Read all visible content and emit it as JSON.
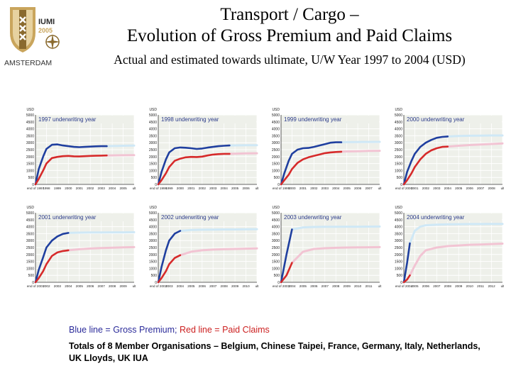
{
  "header": {
    "title_line1": "Transport / Cargo –",
    "title_line2": "Evolution of Gross Premium and Paid Claims",
    "subtitle": "Actual and estimated towards ultimate, U/W Year 1997 to 2004 (USD)"
  },
  "logo": {
    "text_iumi": "IUMI",
    "text_year": "2005",
    "text_city": "AMSTERDAM"
  },
  "legend": {
    "blue_text": "Blue line = Gross Premium;",
    "red_text": "Red line = Paid Claims"
  },
  "footnote": "Totals of 8 Member Organisations – Belgium, Chinese Taipei, France, Germany, Italy, Netherlands, UK Lloyds, UK IUA",
  "colors": {
    "premium": "#1f3f9f",
    "premium_est": "#cfe8f6",
    "claims": "#d62a2a",
    "claims_est": "#f2c4d3",
    "panel_bg": "#eef0ea",
    "grid": "#ffffff"
  },
  "chart_data": [
    {
      "type": "line",
      "title": "1997 underwriting year",
      "unit": "USD",
      "yticks": [
        0,
        500,
        1000,
        1500,
        2000,
        2500,
        3000,
        3500,
        4000,
        4500,
        5000
      ],
      "ylim": [
        0,
        5000
      ],
      "xticks": [
        "end of 1997",
        "1998",
        "1999",
        "2000",
        "2001",
        "2002",
        "2003",
        "2004",
        "2005",
        "ult"
      ],
      "series": [
        {
          "name": "Gross Premium",
          "x": [
            0,
            0.3,
            0.7,
            1,
            1.5,
            2,
            2.5,
            3,
            3.5,
            4,
            4.5,
            5,
            5.5,
            6,
            6.5
          ],
          "y": [
            0,
            1100,
            2000,
            2550,
            2850,
            2880,
            2800,
            2750,
            2700,
            2680,
            2700,
            2720,
            2740,
            2750,
            2750
          ]
        },
        {
          "name": "Gross Premium (estimated)",
          "x": [
            6.5,
            7,
            7.5,
            8,
            9
          ],
          "y": [
            2750,
            2760,
            2770,
            2780,
            2790
          ]
        },
        {
          "name": "Paid Claims",
          "x": [
            0,
            0.3,
            0.7,
            1,
            1.5,
            2,
            2.5,
            3,
            3.5,
            4,
            4.5,
            5,
            5.5,
            6,
            6.5
          ],
          "y": [
            0,
            400,
            1000,
            1500,
            1900,
            1980,
            2030,
            2050,
            2020,
            2010,
            2030,
            2050,
            2060,
            2070,
            2080
          ]
        },
        {
          "name": "Paid Claims (estimated)",
          "x": [
            6.5,
            7,
            7.5,
            8,
            9
          ],
          "y": [
            2080,
            2085,
            2090,
            2095,
            2100
          ]
        }
      ]
    },
    {
      "type": "line",
      "title": "1998 underwriting year",
      "unit": "USD",
      "yticks": [
        0,
        500,
        1000,
        1500,
        2000,
        2500,
        3000,
        3500,
        4000,
        4500,
        5000
      ],
      "ylim": [
        0,
        5000
      ],
      "xticks": [
        "end of 1998",
        "1999",
        "2000",
        "2001",
        "2002",
        "2003",
        "2004",
        "2005",
        "2006",
        "ult"
      ],
      "series": [
        {
          "name": "Gross Premium",
          "x": [
            0,
            0.3,
            0.7,
            1,
            1.5,
            2,
            2.5,
            3,
            3.5,
            4,
            4.5,
            5,
            5.5,
            6,
            6.5
          ],
          "y": [
            0,
            900,
            1800,
            2300,
            2600,
            2660,
            2640,
            2600,
            2550,
            2580,
            2650,
            2700,
            2750,
            2780,
            2800
          ]
        },
        {
          "name": "Gross Premium (estimated)",
          "x": [
            6.5,
            7,
            7.5,
            8,
            9
          ],
          "y": [
            2800,
            2805,
            2810,
            2815,
            2820
          ]
        },
        {
          "name": "Paid Claims",
          "x": [
            0,
            0.3,
            0.7,
            1,
            1.5,
            2,
            2.5,
            3,
            3.5,
            4,
            4.5,
            5,
            5.5,
            6,
            6.5
          ],
          "y": [
            0,
            300,
            800,
            1250,
            1700,
            1850,
            1950,
            1980,
            1970,
            2000,
            2080,
            2150,
            2180,
            2200,
            2200
          ]
        },
        {
          "name": "Paid Claims (estimated)",
          "x": [
            6.5,
            7,
            7.5,
            8,
            9
          ],
          "y": [
            2200,
            2210,
            2220,
            2230,
            2240
          ]
        }
      ]
    },
    {
      "type": "line",
      "title": "1999 underwriting year",
      "unit": "USD",
      "yticks": [
        0,
        500,
        1000,
        1500,
        2000,
        2500,
        3000,
        3500,
        4000,
        4500,
        5000
      ],
      "ylim": [
        0,
        5000
      ],
      "xticks": [
        "end of 1999",
        "2000",
        "2001",
        "2002",
        "2003",
        "2004",
        "2005",
        "2006",
        "2007",
        "ult"
      ],
      "series": [
        {
          "name": "Gross Premium",
          "x": [
            0,
            0.3,
            0.7,
            1,
            1.5,
            2,
            2.5,
            3,
            3.5,
            4,
            4.5,
            5,
            5.5
          ],
          "y": [
            0,
            800,
            1700,
            2200,
            2500,
            2600,
            2620,
            2700,
            2800,
            2900,
            3000,
            3030,
            3030
          ]
        },
        {
          "name": "Gross Premium (estimated)",
          "x": [
            5.5,
            6,
            7,
            8,
            9
          ],
          "y": [
            3030,
            3040,
            3050,
            3055,
            3060
          ]
        },
        {
          "name": "Paid Claims",
          "x": [
            0,
            0.3,
            0.7,
            1,
            1.5,
            2,
            2.5,
            3,
            3.5,
            4,
            4.5,
            5,
            5.5
          ],
          "y": [
            0,
            300,
            700,
            1100,
            1550,
            1800,
            1950,
            2050,
            2150,
            2250,
            2300,
            2330,
            2350
          ]
        },
        {
          "name": "Paid Claims (estimated)",
          "x": [
            5.5,
            6,
            7,
            8,
            9
          ],
          "y": [
            2350,
            2370,
            2390,
            2410,
            2420
          ]
        }
      ]
    },
    {
      "type": "line",
      "title": "2000 underwriting year",
      "unit": "USD",
      "yticks": [
        0,
        500,
        1000,
        1500,
        2000,
        2500,
        3000,
        3500,
        4000,
        4500,
        5000
      ],
      "ylim": [
        0,
        5000
      ],
      "xticks": [
        "end of 2000",
        "2001",
        "2002",
        "2003",
        "2004",
        "2005",
        "2006",
        "2007",
        "2008",
        "ult"
      ],
      "series": [
        {
          "name": "Gross Premium",
          "x": [
            0,
            0.3,
            0.7,
            1,
            1.5,
            2,
            2.5,
            3,
            3.5,
            4
          ],
          "y": [
            0,
            900,
            1700,
            2200,
            2700,
            3000,
            3200,
            3350,
            3420,
            3450
          ]
        },
        {
          "name": "Gross Premium (estimated)",
          "x": [
            4,
            5,
            6,
            7,
            8,
            9
          ],
          "y": [
            3450,
            3480,
            3500,
            3510,
            3520,
            3520
          ]
        },
        {
          "name": "Paid Claims",
          "x": [
            0,
            0.3,
            0.7,
            1,
            1.5,
            2,
            2.5,
            3,
            3.5,
            4
          ],
          "y": [
            0,
            300,
            800,
            1250,
            1800,
            2200,
            2450,
            2600,
            2700,
            2720
          ]
        },
        {
          "name": "Paid Claims (estimated)",
          "x": [
            4,
            5,
            6,
            7,
            8,
            9
          ],
          "y": [
            2720,
            2780,
            2830,
            2870,
            2910,
            2950
          ]
        }
      ]
    },
    {
      "type": "line",
      "title": "2001 underwriting year",
      "unit": "USD",
      "yticks": [
        0,
        500,
        1000,
        1500,
        2000,
        2500,
        3000,
        3500,
        4000,
        4500,
        5000
      ],
      "ylim": [
        0,
        5000
      ],
      "xticks": [
        "end of 2001",
        "2002",
        "2003",
        "2004",
        "2005",
        "2006",
        "2007",
        "2008",
        "2009",
        "ult"
      ],
      "series": [
        {
          "name": "Gross Premium",
          "x": [
            0,
            0.3,
            0.7,
            1,
            1.5,
            2,
            2.5,
            3
          ],
          "y": [
            0,
            900,
            1800,
            2500,
            3000,
            3300,
            3480,
            3550
          ]
        },
        {
          "name": "Gross Premium (estimated)",
          "x": [
            3,
            4,
            5,
            6,
            7,
            8,
            9
          ],
          "y": [
            3550,
            3570,
            3580,
            3580,
            3590,
            3590,
            3600
          ]
        },
        {
          "name": "Paid Claims",
          "x": [
            0,
            0.3,
            0.7,
            1,
            1.5,
            2,
            2.5,
            3
          ],
          "y": [
            0,
            300,
            800,
            1300,
            1900,
            2150,
            2250,
            2300
          ]
        },
        {
          "name": "Paid Claims (estimated)",
          "x": [
            3,
            4,
            5,
            6,
            7,
            8,
            9
          ],
          "y": [
            2300,
            2380,
            2430,
            2460,
            2490,
            2510,
            2530
          ]
        }
      ]
    },
    {
      "type": "line",
      "title": "2002 underwriting year",
      "unit": "USD",
      "yticks": [
        0,
        500,
        1000,
        1500,
        2000,
        2500,
        3000,
        3500,
        4000,
        4500,
        5000
      ],
      "ylim": [
        0,
        5000
      ],
      "xticks": [
        "end of 2002",
        "2003",
        "2004",
        "2005",
        "2006",
        "2007",
        "2008",
        "2009",
        "2010",
        "ult"
      ],
      "series": [
        {
          "name": "Gross Premium",
          "x": [
            0,
            0.3,
            0.7,
            1,
            1.5,
            2
          ],
          "y": [
            0,
            1100,
            2300,
            3000,
            3500,
            3700
          ]
        },
        {
          "name": "Gross Premium (estimated)",
          "x": [
            2,
            3,
            4,
            5,
            6,
            7,
            8,
            9
          ],
          "y": [
            3700,
            3760,
            3780,
            3790,
            3800,
            3800,
            3810,
            3820
          ]
        },
        {
          "name": "Paid Claims",
          "x": [
            0,
            0.3,
            0.7,
            1,
            1.5,
            2
          ],
          "y": [
            0,
            300,
            800,
            1300,
            1750,
            1950
          ]
        },
        {
          "name": "Paid Claims (estimated)",
          "x": [
            2,
            3,
            4,
            5,
            6,
            7,
            8,
            9
          ],
          "y": [
            1950,
            2200,
            2300,
            2350,
            2380,
            2400,
            2420,
            2440
          ]
        }
      ]
    },
    {
      "type": "line",
      "title": "2003 underwriting year",
      "unit": "USD",
      "yticks": [
        0,
        500,
        1000,
        1500,
        2000,
        2500,
        3000,
        3500,
        4000,
        4500,
        5000
      ],
      "ylim": [
        0,
        5000
      ],
      "xticks": [
        "end of 2003",
        "2004",
        "2005",
        "2006",
        "2007",
        "2008",
        "2009",
        "2010",
        "2011",
        "ult"
      ],
      "series": [
        {
          "name": "Gross Premium",
          "x": [
            0,
            0.5,
            1
          ],
          "y": [
            0,
            2000,
            3800
          ]
        },
        {
          "name": "Gross Premium (estimated)",
          "x": [
            1,
            2,
            3,
            4,
            5,
            6,
            7,
            8,
            9
          ],
          "y": [
            3800,
            3950,
            3980,
            3990,
            3995,
            4000,
            4000,
            4005,
            4010
          ]
        },
        {
          "name": "Paid Claims",
          "x": [
            0,
            0.5,
            1
          ],
          "y": [
            0,
            500,
            1400
          ]
        },
        {
          "name": "Paid Claims (estimated)",
          "x": [
            1,
            2,
            3,
            4,
            5,
            6,
            7,
            8,
            9
          ],
          "y": [
            1400,
            2200,
            2400,
            2450,
            2480,
            2500,
            2510,
            2520,
            2530
          ]
        }
      ]
    },
    {
      "type": "line",
      "title": "2004 underwriting year",
      "unit": "USD",
      "yticks": [
        0,
        500,
        1000,
        1500,
        2000,
        2500,
        3000,
        3500,
        4000,
        4500,
        5000
      ],
      "ylim": [
        0,
        5000
      ],
      "xticks": [
        "end of 2004",
        "2005",
        "2006",
        "2007",
        "2008",
        "2009",
        "2010",
        "2011",
        "2012",
        "ult"
      ],
      "series": [
        {
          "name": "Gross Premium",
          "x": [
            0,
            0.3,
            0.55
          ],
          "y": [
            0,
            1400,
            2800
          ]
        },
        {
          "name": "Gross Premium (estimated)",
          "x": [
            0.55,
            1,
            1.5,
            2,
            3,
            4,
            5,
            6,
            7,
            8,
            9
          ],
          "y": [
            2800,
            3700,
            4000,
            4100,
            4150,
            4170,
            4180,
            4190,
            4190,
            4200,
            4200
          ]
        },
        {
          "name": "Paid Claims",
          "x": [
            0,
            0.3,
            0.55
          ],
          "y": [
            0,
            200,
            500
          ]
        },
        {
          "name": "Paid Claims (estimated)",
          "x": [
            0.55,
            1,
            1.5,
            2,
            3,
            4,
            5,
            6,
            7,
            8,
            9
          ],
          "y": [
            500,
            1200,
            1900,
            2300,
            2500,
            2600,
            2650,
            2700,
            2720,
            2750,
            2780
          ]
        }
      ]
    }
  ]
}
